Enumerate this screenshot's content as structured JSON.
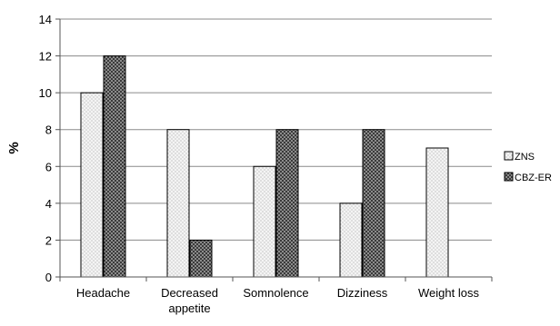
{
  "chart_data": {
    "type": "bar",
    "title": "",
    "xlabel": "",
    "ylabel": "%",
    "ylim": [
      0,
      14
    ],
    "yticks": [
      0,
      2,
      4,
      6,
      8,
      10,
      12,
      14
    ],
    "grid": true,
    "legend_position": "right",
    "categories": [
      [
        "Headache"
      ],
      [
        "Decreased",
        "appetite"
      ],
      [
        "Somnolence"
      ],
      [
        "Dizziness"
      ],
      [
        "Weight loss"
      ]
    ],
    "series": [
      {
        "name": "ZNS",
        "values": [
          10,
          8,
          6,
          4,
          7
        ],
        "pattern": "dotted-light"
      },
      {
        "name": "CBZ-ER",
        "values": [
          12,
          2,
          8,
          8,
          0
        ],
        "pattern": "checker-dark"
      }
    ]
  }
}
